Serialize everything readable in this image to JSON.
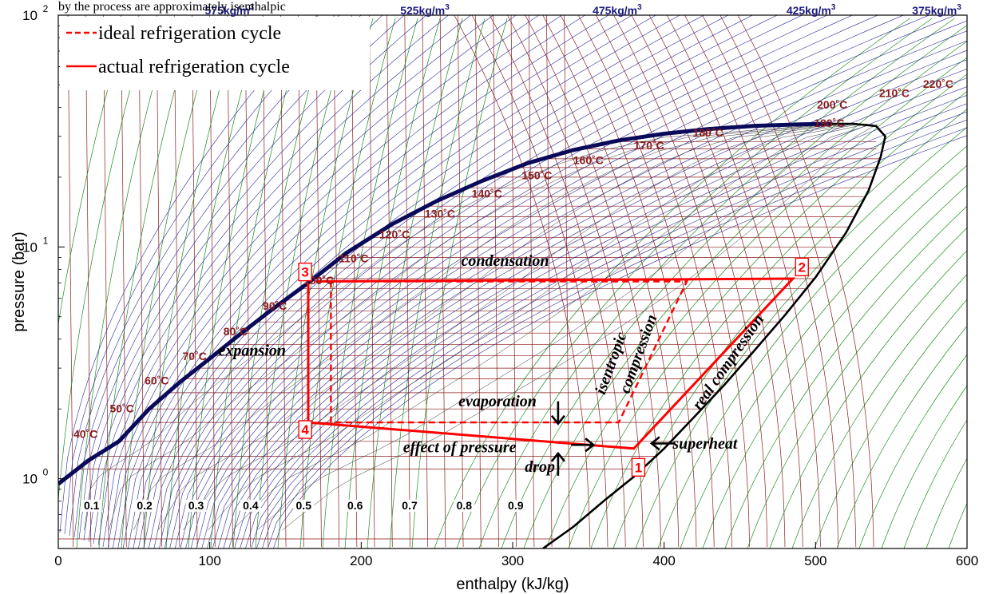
{
  "top_caption": "by the process are approximately isenthalpic",
  "chart_data": {
    "type": "line",
    "title": "",
    "xlabel": "enthalpy (kJ/kg)",
    "ylabel": "pressure (bar)",
    "xlim": [
      0,
      600
    ],
    "ylim": [
      0.5,
      100
    ],
    "y_scale": "log",
    "x_ticks": [
      "0",
      "100",
      "200",
      "300",
      "400",
      "500",
      "600"
    ],
    "y_ticks": [
      {
        "base": "10",
        "exp": "0",
        "value": 1
      },
      {
        "base": "10",
        "exp": "1",
        "value": 10
      },
      {
        "base": "10",
        "exp": "2",
        "value": 100
      }
    ],
    "legend": {
      "placement": "top-left",
      "entries": [
        {
          "label": "ideal refrigeration cycle",
          "style": "dashed",
          "color": "#ff0000"
        },
        {
          "label": "actual refrigeration cycle",
          "style": "solid",
          "color": "#ff0000"
        }
      ]
    },
    "saturation_dome": {
      "color": "#000000",
      "liquid": [
        [
          0,
          0.95
        ],
        [
          20,
          1.2
        ],
        [
          40,
          1.45
        ],
        [
          60,
          2.0
        ],
        [
          80,
          2.6
        ],
        [
          100,
          3.3
        ],
        [
          120,
          4.2
        ],
        [
          140,
          5.3
        ],
        [
          165,
          7.0
        ],
        [
          190,
          9.4
        ],
        [
          220,
          12.5
        ],
        [
          250,
          15.8
        ],
        [
          280,
          19.3
        ],
        [
          310,
          23.0
        ],
        [
          340,
          26.2
        ],
        [
          370,
          28.8
        ],
        [
          400,
          30.8
        ],
        [
          430,
          32.3
        ],
        [
          460,
          33.3
        ],
        [
          490,
          33.8
        ],
        [
          510,
          34.0
        ]
      ],
      "vapor": [
        [
          320,
          0.5
        ],
        [
          340,
          0.62
        ],
        [
          360,
          0.8
        ],
        [
          380,
          1.02
        ],
        [
          400,
          1.35
        ],
        [
          420,
          1.85
        ],
        [
          440,
          2.55
        ],
        [
          460,
          3.6
        ],
        [
          480,
          5.1
        ],
        [
          500,
          7.4
        ],
        [
          520,
          11.5
        ],
        [
          535,
          17.5
        ],
        [
          543,
          24.5
        ],
        [
          546,
          30.0
        ],
        [
          540,
          33.2
        ],
        [
          525,
          34.0
        ],
        [
          510,
          34.0
        ]
      ]
    },
    "ideal_cycle": [
      [
        180,
        7.1
      ],
      [
        180,
        1.75
      ],
      [
        370,
        1.75
      ],
      [
        415,
        7.1
      ],
      [
        180,
        7.1
      ]
    ],
    "actual_cycle": [
      [
        165,
        7.0
      ],
      [
        165,
        1.75
      ],
      [
        380,
        1.35
      ],
      [
        485,
        7.3
      ],
      [
        170,
        7.1
      ]
    ],
    "points": [
      {
        "label": "1",
        "h": 383,
        "p": 1.12
      },
      {
        "label": "2",
        "h": 491,
        "p": 8.2
      },
      {
        "label": "3",
        "h": 163,
        "p": 7.8
      },
      {
        "label": "4",
        "h": 163,
        "p": 1.63
      }
    ],
    "annotations": [
      {
        "text": "condensation",
        "h": 295,
        "p": 8.3,
        "rotate": 0
      },
      {
        "text": "expansion",
        "h": 128,
        "p": 3.4,
        "rotate": 0
      },
      {
        "text": "evaporation",
        "h": 290,
        "p": 2.05,
        "rotate": 0
      },
      {
        "text": "effect of pressure",
        "h": 265,
        "p": 1.3,
        "rotate": 0
      },
      {
        "text": "drop",
        "h": 318,
        "p": 1.07,
        "rotate": 0
      },
      {
        "text": "superheat",
        "h": 427,
        "p": 1.35,
        "rotate": 0
      },
      {
        "text": "isentropic",
        "h": 368,
        "p": 3.1,
        "rotate": -70
      },
      {
        "text": "compression",
        "h": 386,
        "p": 3.4,
        "rotate": -70
      },
      {
        "text": "real compression",
        "h": 445,
        "p": 3.1,
        "rotate": -55
      }
    ],
    "arrows": [
      {
        "h": 330,
        "p": 1.9,
        "dir": "down"
      },
      {
        "h": 330,
        "p": 1.17,
        "dir": "up"
      },
      {
        "h": 347,
        "p": 1.4,
        "dir": "right"
      },
      {
        "h": 398,
        "p": 1.42,
        "dir": "left"
      }
    ],
    "temperature_labels": [
      {
        "text": "40˚C",
        "h": 18,
        "p": 1.5
      },
      {
        "text": "50˚C",
        "h": 42,
        "p": 1.93
      },
      {
        "text": "60˚C",
        "h": 65,
        "p": 2.55
      },
      {
        "text": "70˚C",
        "h": 90,
        "p": 3.25
      },
      {
        "text": "80˚C",
        "h": 117,
        "p": 4.15
      },
      {
        "text": "90˚C",
        "h": 143,
        "p": 5.35
      },
      {
        "text": "100˚C",
        "h": 172,
        "p": 6.9
      },
      {
        "text": "110˚C",
        "h": 195,
        "p": 8.6
      },
      {
        "text": "120˚C",
        "h": 222,
        "p": 10.9
      },
      {
        "text": "130˚C",
        "h": 252,
        "p": 13.4
      },
      {
        "text": "140˚C",
        "h": 283,
        "p": 16.3
      },
      {
        "text": "150˚C",
        "h": 316,
        "p": 19.6
      },
      {
        "text": "160˚C",
        "h": 350,
        "p": 22.8
      },
      {
        "text": "170˚C",
        "h": 390,
        "p": 26.4
      },
      {
        "text": "180˚C",
        "h": 429,
        "p": 30.0
      },
      {
        "text": "190˚C",
        "h": 509,
        "p": 33.0
      },
      {
        "text": "200˚C",
        "h": 511,
        "p": 39.5
      },
      {
        "text": "210˚C",
        "h": 552,
        "p": 44.3
      },
      {
        "text": "220˚C",
        "h": 581,
        "p": 48.5
      }
    ],
    "density_labels": [
      {
        "text": "575kg/m",
        "sup": "3",
        "h": 113
      },
      {
        "text": "525kg/m",
        "sup": "3",
        "h": 242
      },
      {
        "text": "475kg/m",
        "sup": "3",
        "h": 369
      },
      {
        "text": "425kg/m",
        "sup": "3",
        "h": 497
      },
      {
        "text": "375kg/m",
        "sup": "3",
        "h": 580
      }
    ],
    "quality_labels": [
      {
        "text": "0.1",
        "h": 22
      },
      {
        "text": "0.2",
        "h": 57
      },
      {
        "text": "0.3",
        "h": 91
      },
      {
        "text": "0.4",
        "h": 127
      },
      {
        "text": "0.5",
        "h": 162
      },
      {
        "text": "0.6",
        "h": 196
      },
      {
        "text": "0.7",
        "h": 232
      },
      {
        "text": "0.8",
        "h": 268
      },
      {
        "text": "0.9",
        "h": 302
      }
    ],
    "quality_label_p": 0.75,
    "colors": {
      "isochor": "#2a2a9a",
      "isotherm": "#8b1a1a",
      "isentrope": "#1e8c1e",
      "isobar": "#8b1a1a",
      "cycle": "#ff0000",
      "dome": "#000000"
    }
  }
}
